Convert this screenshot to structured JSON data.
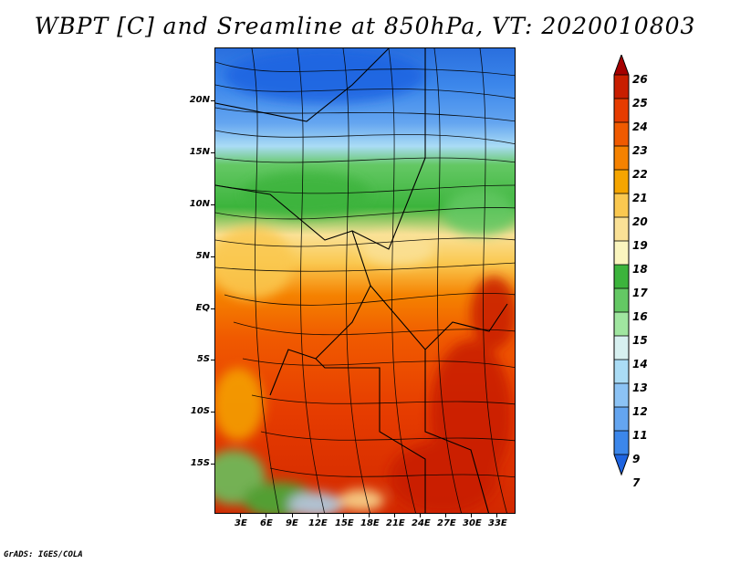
{
  "title": "WBPT [C] and Sreamline at 850hPa, VT: 2020010803",
  "footer": "GrADS: IGES/COLA",
  "map": {
    "lat_labels": [
      "20N",
      "15N",
      "10N",
      "5N",
      "EQ",
      "5S",
      "10S",
      "15S"
    ],
    "lon_labels": [
      "3E",
      "6E",
      "9E",
      "12E",
      "15E",
      "18E",
      "21E",
      "24E",
      "27E",
      "30E",
      "33E"
    ]
  },
  "colorbar": {
    "labels": [
      "26",
      "25",
      "24",
      "23",
      "22",
      "21",
      "20",
      "19",
      "18",
      "17",
      "16",
      "15",
      "14",
      "13",
      "12",
      "11",
      "9",
      "7"
    ],
    "colors": [
      "#a50000",
      "#c81e00",
      "#e63c00",
      "#f05a00",
      "#f58200",
      "#f5a500",
      "#fac850",
      "#fae196",
      "#faf5be",
      "#3cb43c",
      "#64c864",
      "#a0e6a0",
      "#d7f0f0",
      "#aadcf5",
      "#8cc3f5",
      "#64a5f0",
      "#3c87eb",
      "#1e64e1"
    ]
  }
}
